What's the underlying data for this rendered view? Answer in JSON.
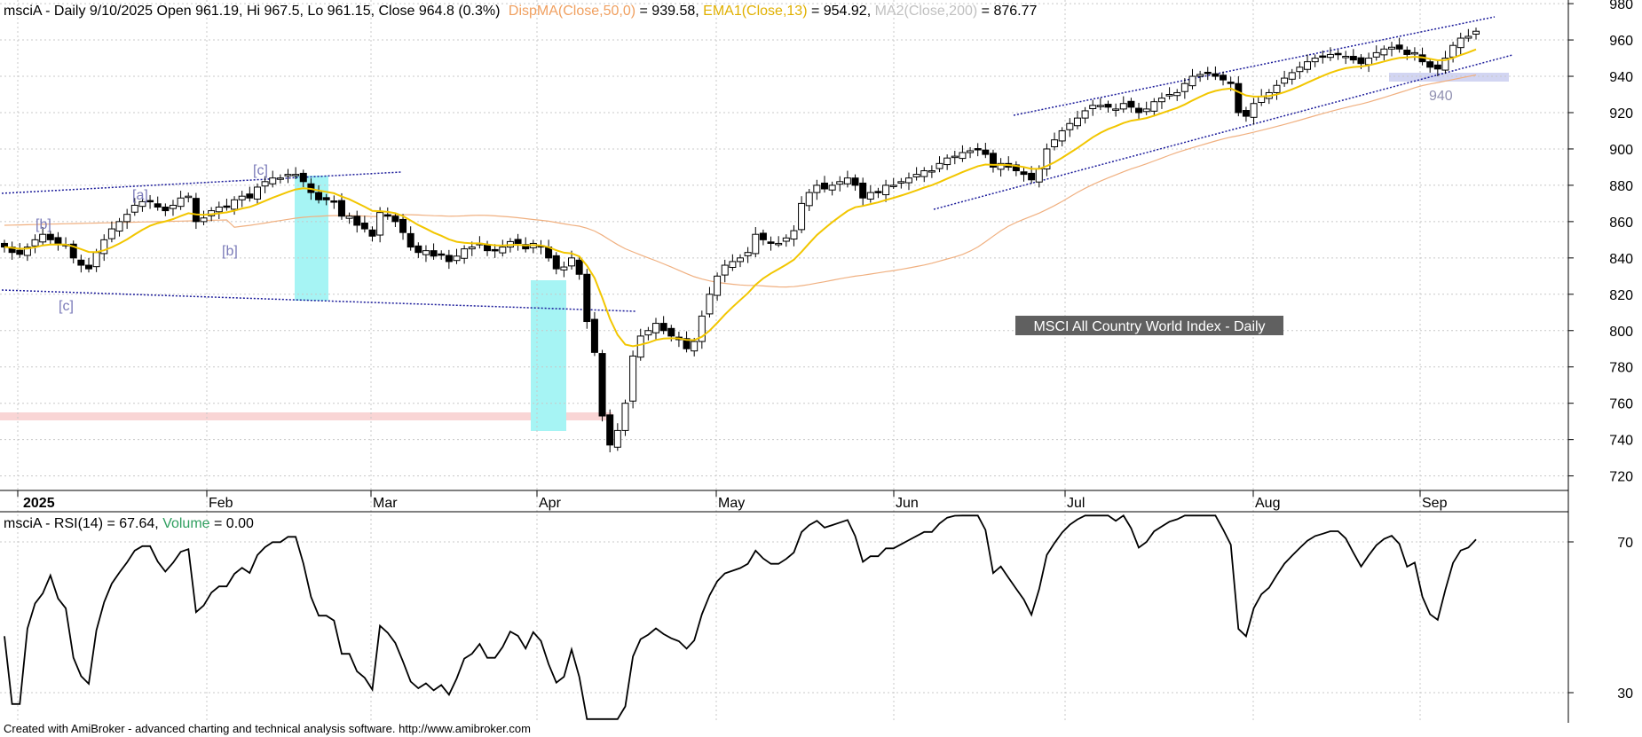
{
  "header": {
    "symbol_line": "msciA - Daily 9/10/2025 Open 961.19, Hi 967.5, Lo 961.15, Close 964.8 (0.3%)",
    "ind1_label": "DispMA(Close,50,0)",
    "ind1_value": " = 939.58, ",
    "ind2_label": "EMA1(Close,13)",
    "ind2_value": " = 954.92, ",
    "ind3_label": "MA2(Close,200)",
    "ind3_value": " = 876.77"
  },
  "rsi_header": {
    "label": "msciA - RSI(14) = 67.64, ",
    "volume_label": "Volume",
    "volume_value": " = 0.00"
  },
  "title_box": "MSCI All Country World Index - Daily",
  "footer": "Created with AmiBroker - advanced charting and technical analysis software. http://www.amibroker.com",
  "annotation_940": "940",
  "colors": {
    "ema": "#f2c600",
    "ma50": "#f0b080",
    "ma200_text": "#c0c0c0",
    "volume_text": "#2e9e5e",
    "ind1_text": "#f0a060",
    "ind2_text": "#e0b000",
    "highlight": "#a6f4f4",
    "red_zone": "#f9d5d5",
    "trend": "#1b1b9a",
    "wave_label": "#7a7ab8"
  },
  "wave_labels": [
    "[b]",
    "[a]",
    "[c]",
    "[b]",
    "[c]"
  ],
  "chart_data": [
    {
      "type": "candlestick",
      "title": "MSCI All Country World Index - Daily",
      "x_ticks": [
        "2025",
        "Feb",
        "Mar",
        "Apr",
        "May",
        "Jun",
        "Jul",
        "Aug",
        "Sep"
      ],
      "y_ticks": [
        720,
        740,
        760,
        780,
        800,
        820,
        840,
        860,
        880,
        900,
        920,
        940,
        960,
        980
      ],
      "ylim": [
        712,
        982
      ],
      "grid": true,
      "closes": [
        846,
        843,
        842,
        846,
        850,
        853,
        850,
        848,
        847,
        840,
        836,
        834,
        843,
        850,
        856,
        860,
        864,
        869,
        871,
        871,
        868,
        866,
        869,
        873,
        874,
        860,
        862,
        866,
        868,
        868,
        872,
        874,
        873,
        879,
        882,
        884,
        884,
        886,
        886,
        882,
        876,
        872,
        872,
        871,
        863,
        863,
        858,
        856,
        852,
        865,
        863,
        860,
        854,
        846,
        843,
        844,
        841,
        842,
        838,
        841,
        845,
        846,
        848,
        844,
        844,
        846,
        849,
        848,
        845,
        848,
        846,
        840,
        834,
        835,
        840,
        831,
        805,
        788,
        753,
        737,
        745,
        760,
        786,
        797,
        800,
        804,
        800,
        797,
        795,
        790,
        794,
        808,
        820,
        830,
        836,
        838,
        840,
        843,
        853,
        850,
        848,
        848,
        851,
        855,
        870,
        876,
        880,
        878,
        880,
        882,
        884,
        880,
        873,
        876,
        876,
        880,
        880,
        882,
        884,
        886,
        888,
        888,
        892,
        895,
        896,
        898,
        899,
        900,
        897,
        890,
        892,
        890,
        888,
        886,
        883,
        889,
        900,
        905,
        910,
        914,
        917,
        921,
        924,
        924,
        923,
        922,
        925,
        923,
        920,
        922,
        926,
        928,
        930,
        931,
        936,
        940,
        941,
        942,
        940,
        938,
        936,
        920,
        918,
        925,
        929,
        931,
        935,
        939,
        942,
        945,
        948,
        950,
        951,
        952,
        952,
        951,
        949,
        947,
        950,
        953,
        955,
        956,
        955,
        952,
        953,
        948,
        945,
        944,
        950,
        957,
        961,
        962,
        964.8
      ],
      "series": [
        {
          "name": "DispMA(Close,50,0)",
          "last": 939.58
        },
        {
          "name": "EMA1(Close,13)",
          "last": 954.92
        },
        {
          "name": "MA2(Close,200)",
          "last": 876.77
        }
      ],
      "annotations": [
        "[b]",
        "[a]",
        "[c]",
        "[b]",
        "[c]",
        "940"
      ]
    },
    {
      "type": "line",
      "title": "msciA - RSI(14) = 67.64",
      "y_ticks": [
        30,
        70
      ],
      "ylim": [
        22,
        78
      ],
      "last": 67.64
    }
  ]
}
